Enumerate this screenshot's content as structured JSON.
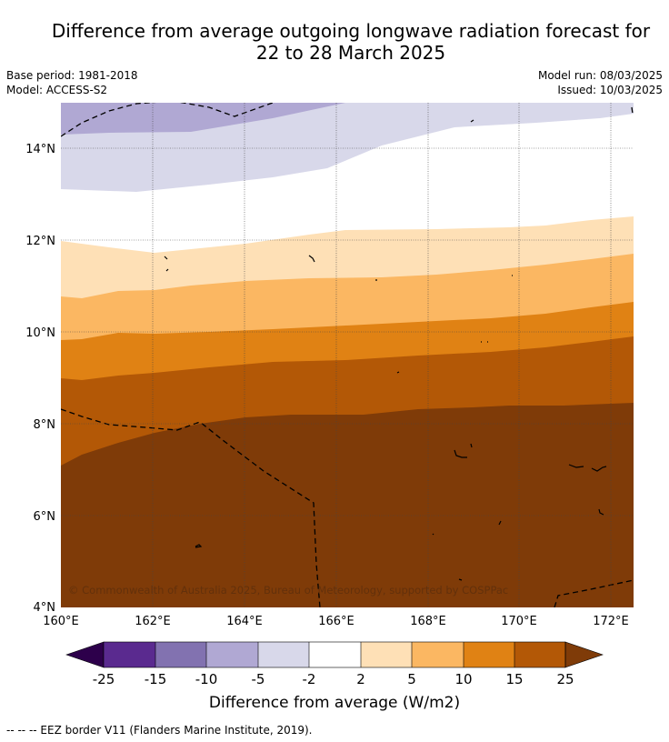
{
  "header": {
    "title_line1": "Difference from average outgoing longwave radiation forecast for",
    "title_line2": "22 to 28 March 2025",
    "base_period": "Base period: 1981-2018",
    "model": "Model: ACCESS-S2",
    "model_run": "Model run: 08/03/2025",
    "issued": "Issued: 10/03/2025"
  },
  "map": {
    "lon_range": [
      160,
      172.5
    ],
    "lat_range": [
      4,
      15
    ],
    "lon_ticks": [
      "160°E",
      "162°E",
      "164°E",
      "166°E",
      "168°E",
      "170°E",
      "172°E"
    ],
    "lat_ticks": [
      "4°N",
      "6°N",
      "8°N",
      "10°N",
      "12°N",
      "14°N"
    ],
    "grid": true,
    "copyright": "© Commonwealth of Australia 2025, Bureau of Meteorology, supported by COSPPac"
  },
  "colorbar": {
    "tick_labels": [
      "-25",
      "-15",
      "-10",
      "-5",
      "-2",
      "2",
      "5",
      "10",
      "15",
      "25"
    ],
    "label": "Difference from average (W/m2)",
    "colors": [
      "#2d004b",
      "#5a2a8f",
      "#8272b0",
      "#b0a8d3",
      "#d8d8ea",
      "#ffffff",
      "#fee0b6",
      "#fbb762",
      "#e08214",
      "#b35806",
      "#7f3b08"
    ]
  },
  "footer": {
    "legend": "--  --  -- EEZ border V11 (Flanders Marine Institute, 2019)."
  }
}
